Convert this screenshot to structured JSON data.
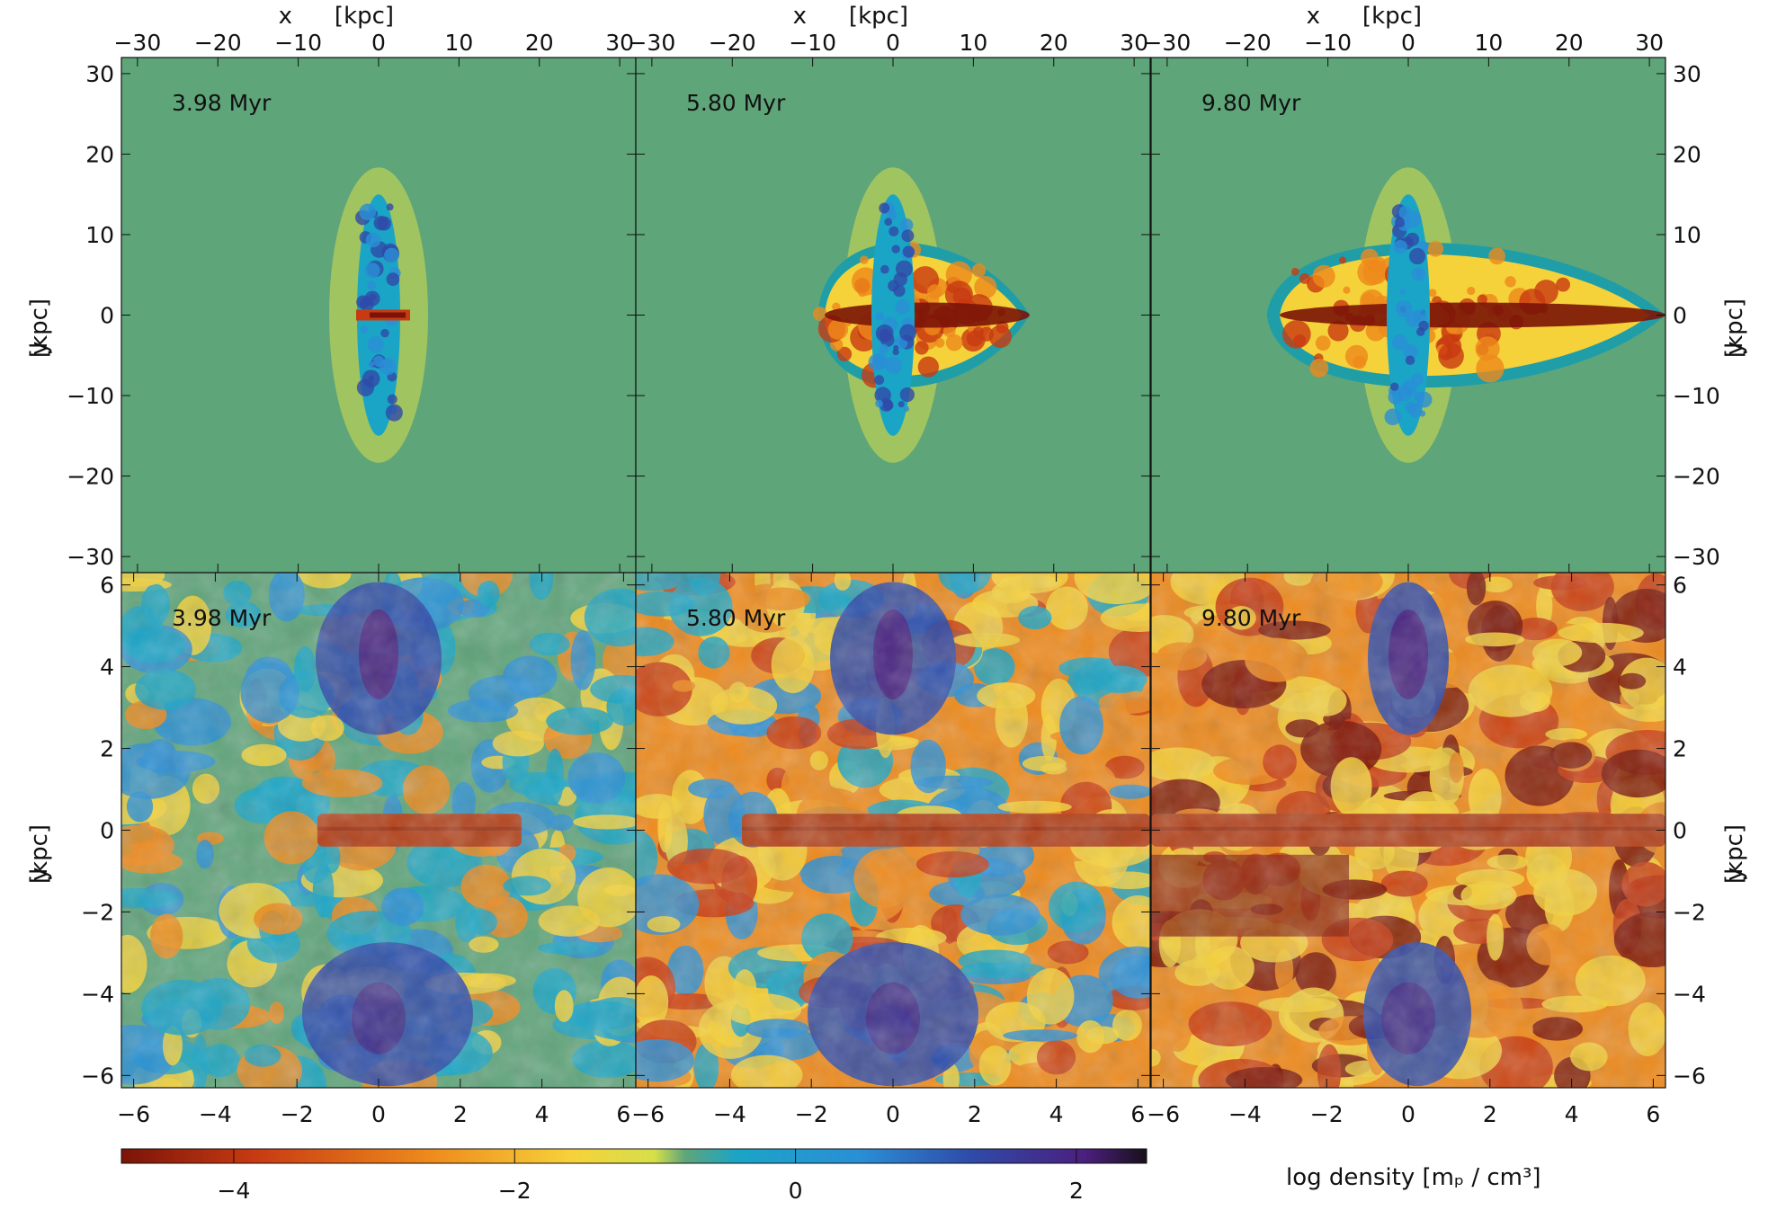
{
  "figure": {
    "top_axis_label_prefix": "x",
    "top_axis_label_unit": "[kpc]",
    "y_axis_label_prefix": "y",
    "y_axis_label_unit": "[kpc]",
    "colorbar_label": "log density  [mₚ / cm³]",
    "colorbar_ticks": [
      "−4",
      "−2",
      "0",
      "2"
    ]
  },
  "chart_data": {
    "type": "heatmap",
    "quantity": "log density [m_p / cm^3]",
    "colorbar_range": [
      -4.8,
      2.5
    ],
    "colormap_stops": [
      "#7a1408",
      "#c83a12",
      "#ee8a1c",
      "#f6d23a",
      "#d6df4a",
      "#5fa57a",
      "#1aa5c6",
      "#2a8fd6",
      "#2f4aa8",
      "#4b1f7e",
      "#181018"
    ],
    "panels": [
      {
        "row": "top",
        "time": "3.98 Myr",
        "xlim": [
          -32,
          32
        ],
        "ylim": [
          -32,
          32
        ],
        "extent_x": 3,
        "extent_y": 15
      },
      {
        "row": "top",
        "time": "5.80 Myr",
        "xlim": [
          -32,
          32
        ],
        "ylim": [
          -32,
          32
        ],
        "extent_x": 17,
        "extent_y": 15
      },
      {
        "row": "top",
        "time": "9.80 Myr",
        "xlim": [
          -32,
          32
        ],
        "ylim": [
          -32,
          32
        ],
        "extent_x": 32,
        "extent_y": 15
      },
      {
        "row": "bottom",
        "time": "3.98 Myr",
        "xlim": [
          -6.3,
          6.3
        ],
        "ylim": [
          -6.3,
          6.3
        ]
      },
      {
        "row": "bottom",
        "time": "5.80 Myr",
        "xlim": [
          -6.3,
          6.3
        ],
        "ylim": [
          -6.3,
          6.3
        ]
      },
      {
        "row": "bottom",
        "time": "9.80 Myr",
        "xlim": [
          -6.3,
          6.3
        ],
        "ylim": [
          -6.3,
          6.3
        ]
      }
    ],
    "top_ticks": [
      "−30",
      "−20",
      "−10",
      "0",
      "10",
      "20",
      "30"
    ],
    "top_tick_values": [
      -30,
      -20,
      -10,
      0,
      10,
      20,
      30
    ],
    "bottom_ticks": [
      "−6",
      "−4",
      "−2",
      "0",
      "2",
      "4",
      "6"
    ],
    "bottom_tick_values": [
      -6,
      -4,
      -2,
      0,
      2,
      4,
      6
    ]
  }
}
